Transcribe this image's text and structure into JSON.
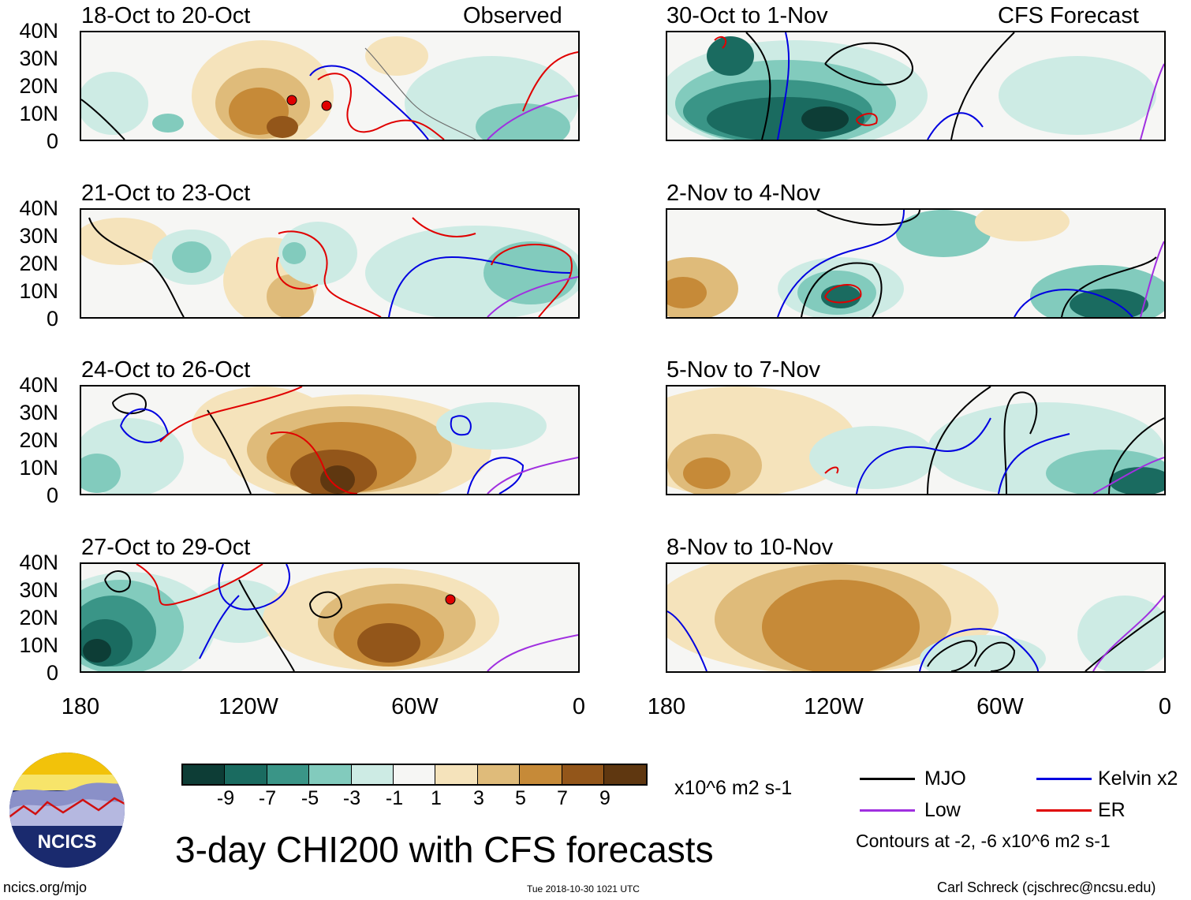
{
  "figure": {
    "title": "3-day CHI200 with CFS forecasts",
    "site": "ncics.org/mjo",
    "timestamp": "Tue 2018-10-30 1021 UTC",
    "author": "Carl Schreck (cjschrec@ncsu.edu)",
    "logo_text": "NCICS",
    "units": "x10^6 m2 s-1",
    "contour_note": "Contours at -2, -6 x10^6 m2 s-1"
  },
  "columns": {
    "left_label": "Observed",
    "right_label": "CFS Forecast"
  },
  "lat_ticks": [
    "40N",
    "30N",
    "20N",
    "10N",
    "0"
  ],
  "lon_ticks": [
    "180",
    "120W",
    "60W",
    "0"
  ],
  "panels": [
    {
      "period": "18-Oct to 20-Oct",
      "kind": "observed"
    },
    {
      "period": "21-Oct to 23-Oct",
      "kind": "observed"
    },
    {
      "period": "24-Oct to 26-Oct",
      "kind": "observed"
    },
    {
      "period": "27-Oct to 29-Oct",
      "kind": "observed"
    },
    {
      "period": "30-Oct to 1-Nov",
      "kind": "forecast"
    },
    {
      "period": "2-Nov to 4-Nov",
      "kind": "forecast"
    },
    {
      "period": "5-Nov to 7-Nov",
      "kind": "forecast"
    },
    {
      "period": "8-Nov to 10-Nov",
      "kind": "forecast"
    }
  ],
  "colorbar": {
    "labels": [
      "-9",
      "-7",
      "-5",
      "-3",
      "-1",
      "1",
      "3",
      "5",
      "7",
      "9"
    ],
    "colors": [
      "#0d3d36",
      "#1a6b60",
      "#3a9587",
      "#82cbbd",
      "#cdebe4",
      "#f6f6f4",
      "#f5e3bb",
      "#dfbb7a",
      "#c68a38",
      "#93561a",
      "#5f3710"
    ]
  },
  "legend": [
    {
      "label": "MJO",
      "color": "#000000"
    },
    {
      "label": "Kelvin x2",
      "color": "#0000e0"
    },
    {
      "label": "Low",
      "color": "#a030e0"
    },
    {
      "label": "ER",
      "color": "#e00000"
    }
  ]
}
